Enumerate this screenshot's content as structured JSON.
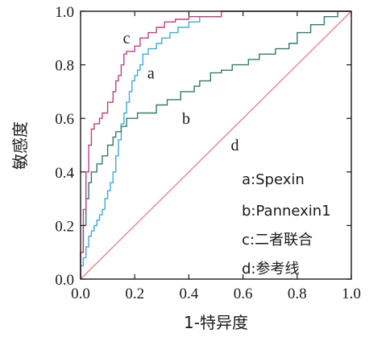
{
  "chart_data": {
    "type": "line",
    "xlabel": "1-特异度",
    "ylabel": "敏感度",
    "xlim": [
      0,
      1
    ],
    "ylim": [
      0,
      1
    ],
    "x_ticks": [
      "0.0",
      "0.2",
      "0.4",
      "0.6",
      "0.8",
      "1.0"
    ],
    "y_ticks": [
      "0.0",
      "0.2",
      "0.4",
      "0.6",
      "0.8",
      "1.0"
    ],
    "grid": false,
    "legend_position": "bottom-right",
    "legend": [
      "a:Spexin",
      "b:Pannexin1",
      "c:二者联合",
      "d:参考线"
    ],
    "series": [
      {
        "name": "a",
        "color": "#3fa9e0",
        "label_at": [
          0.26,
          0.75
        ],
        "points": [
          [
            0,
            0
          ],
          [
            0,
            0.05
          ],
          [
            0.01,
            0.05
          ],
          [
            0.01,
            0.08
          ],
          [
            0.02,
            0.08
          ],
          [
            0.02,
            0.12
          ],
          [
            0.03,
            0.12
          ],
          [
            0.03,
            0.16
          ],
          [
            0.04,
            0.16
          ],
          [
            0.04,
            0.18
          ],
          [
            0.05,
            0.18
          ],
          [
            0.05,
            0.2
          ],
          [
            0.06,
            0.2
          ],
          [
            0.06,
            0.22
          ],
          [
            0.07,
            0.22
          ],
          [
            0.07,
            0.24
          ],
          [
            0.08,
            0.24
          ],
          [
            0.08,
            0.26
          ],
          [
            0.09,
            0.26
          ],
          [
            0.09,
            0.3
          ],
          [
            0.1,
            0.3
          ],
          [
            0.1,
            0.33
          ],
          [
            0.11,
            0.33
          ],
          [
            0.11,
            0.36
          ],
          [
            0.12,
            0.36
          ],
          [
            0.12,
            0.4
          ],
          [
            0.13,
            0.4
          ],
          [
            0.13,
            0.46
          ],
          [
            0.14,
            0.46
          ],
          [
            0.14,
            0.52
          ],
          [
            0.15,
            0.52
          ],
          [
            0.15,
            0.58
          ],
          [
            0.16,
            0.58
          ],
          [
            0.16,
            0.62
          ],
          [
            0.17,
            0.62
          ],
          [
            0.17,
            0.66
          ],
          [
            0.18,
            0.66
          ],
          [
            0.18,
            0.7
          ],
          [
            0.19,
            0.7
          ],
          [
            0.19,
            0.74
          ],
          [
            0.2,
            0.74
          ],
          [
            0.2,
            0.76
          ],
          [
            0.21,
            0.76
          ],
          [
            0.21,
            0.78
          ],
          [
            0.22,
            0.78
          ],
          [
            0.22,
            0.8
          ],
          [
            0.23,
            0.8
          ],
          [
            0.23,
            0.84
          ],
          [
            0.25,
            0.84
          ],
          [
            0.25,
            0.86
          ],
          [
            0.28,
            0.86
          ],
          [
            0.28,
            0.88
          ],
          [
            0.3,
            0.88
          ],
          [
            0.3,
            0.9
          ],
          [
            0.33,
            0.9
          ],
          [
            0.33,
            0.92
          ],
          [
            0.36,
            0.92
          ],
          [
            0.36,
            0.94
          ],
          [
            0.4,
            0.94
          ],
          [
            0.4,
            0.96
          ],
          [
            0.44,
            0.96
          ],
          [
            0.44,
            0.98
          ],
          [
            0.52,
            0.98
          ],
          [
            0.52,
            1.0
          ],
          [
            1.0,
            1.0
          ]
        ]
      },
      {
        "name": "b",
        "color": "#2f7d6a",
        "label_at": [
          0.39,
          0.58
        ],
        "points": [
          [
            0,
            0
          ],
          [
            0,
            0.1
          ],
          [
            0.01,
            0.1
          ],
          [
            0.01,
            0.2
          ],
          [
            0.02,
            0.2
          ],
          [
            0.02,
            0.3
          ],
          [
            0.03,
            0.3
          ],
          [
            0.03,
            0.36
          ],
          [
            0.04,
            0.36
          ],
          [
            0.04,
            0.4
          ],
          [
            0.06,
            0.4
          ],
          [
            0.06,
            0.43
          ],
          [
            0.08,
            0.43
          ],
          [
            0.08,
            0.46
          ],
          [
            0.1,
            0.46
          ],
          [
            0.1,
            0.5
          ],
          [
            0.12,
            0.5
          ],
          [
            0.12,
            0.53
          ],
          [
            0.13,
            0.53
          ],
          [
            0.13,
            0.55
          ],
          [
            0.15,
            0.55
          ],
          [
            0.15,
            0.57
          ],
          [
            0.17,
            0.57
          ],
          [
            0.17,
            0.6
          ],
          [
            0.21,
            0.6
          ],
          [
            0.21,
            0.62
          ],
          [
            0.28,
            0.62
          ],
          [
            0.28,
            0.65
          ],
          [
            0.32,
            0.65
          ],
          [
            0.32,
            0.67
          ],
          [
            0.37,
            0.67
          ],
          [
            0.37,
            0.7
          ],
          [
            0.42,
            0.7
          ],
          [
            0.42,
            0.72
          ],
          [
            0.44,
            0.72
          ],
          [
            0.44,
            0.74
          ],
          [
            0.48,
            0.74
          ],
          [
            0.48,
            0.77
          ],
          [
            0.52,
            0.77
          ],
          [
            0.52,
            0.78
          ],
          [
            0.56,
            0.78
          ],
          [
            0.56,
            0.8
          ],
          [
            0.62,
            0.8
          ],
          [
            0.62,
            0.82
          ],
          [
            0.66,
            0.82
          ],
          [
            0.66,
            0.84
          ],
          [
            0.72,
            0.84
          ],
          [
            0.72,
            0.86
          ],
          [
            0.77,
            0.86
          ],
          [
            0.77,
            0.88
          ],
          [
            0.8,
            0.88
          ],
          [
            0.8,
            0.92
          ],
          [
            0.85,
            0.92
          ],
          [
            0.85,
            0.95
          ],
          [
            0.9,
            0.95
          ],
          [
            0.9,
            0.98
          ],
          [
            0.95,
            0.98
          ],
          [
            0.95,
            1.0
          ],
          [
            1.0,
            1.0
          ]
        ]
      },
      {
        "name": "c",
        "color": "#c2407e",
        "label_at": [
          0.17,
          0.88
        ],
        "points": [
          [
            0,
            0
          ],
          [
            0,
            0.1
          ],
          [
            0.01,
            0.1
          ],
          [
            0.01,
            0.26
          ],
          [
            0.02,
            0.26
          ],
          [
            0.02,
            0.4
          ],
          [
            0.03,
            0.4
          ],
          [
            0.03,
            0.5
          ],
          [
            0.04,
            0.5
          ],
          [
            0.04,
            0.56
          ],
          [
            0.05,
            0.56
          ],
          [
            0.05,
            0.58
          ],
          [
            0.07,
            0.58
          ],
          [
            0.07,
            0.6
          ],
          [
            0.08,
            0.6
          ],
          [
            0.08,
            0.62
          ],
          [
            0.1,
            0.62
          ],
          [
            0.1,
            0.66
          ],
          [
            0.12,
            0.66
          ],
          [
            0.12,
            0.7
          ],
          [
            0.13,
            0.7
          ],
          [
            0.13,
            0.74
          ],
          [
            0.14,
            0.74
          ],
          [
            0.14,
            0.76
          ],
          [
            0.15,
            0.76
          ],
          [
            0.15,
            0.8
          ],
          [
            0.16,
            0.8
          ],
          [
            0.16,
            0.84
          ],
          [
            0.17,
            0.84
          ],
          [
            0.17,
            0.85
          ],
          [
            0.2,
            0.85
          ],
          [
            0.2,
            0.87
          ],
          [
            0.22,
            0.87
          ],
          [
            0.22,
            0.9
          ],
          [
            0.25,
            0.9
          ],
          [
            0.25,
            0.92
          ],
          [
            0.28,
            0.92
          ],
          [
            0.28,
            0.94
          ],
          [
            0.31,
            0.94
          ],
          [
            0.31,
            0.96
          ],
          [
            0.35,
            0.96
          ],
          [
            0.35,
            0.97
          ],
          [
            0.4,
            0.97
          ],
          [
            0.4,
            0.98
          ],
          [
            0.52,
            0.98
          ],
          [
            0.52,
            1.0
          ],
          [
            1.0,
            1.0
          ]
        ]
      },
      {
        "name": "d",
        "color": "#e8929a",
        "label_at": [
          0.57,
          0.48
        ],
        "points": [
          [
            0,
            0
          ],
          [
            1,
            1
          ]
        ]
      }
    ]
  }
}
